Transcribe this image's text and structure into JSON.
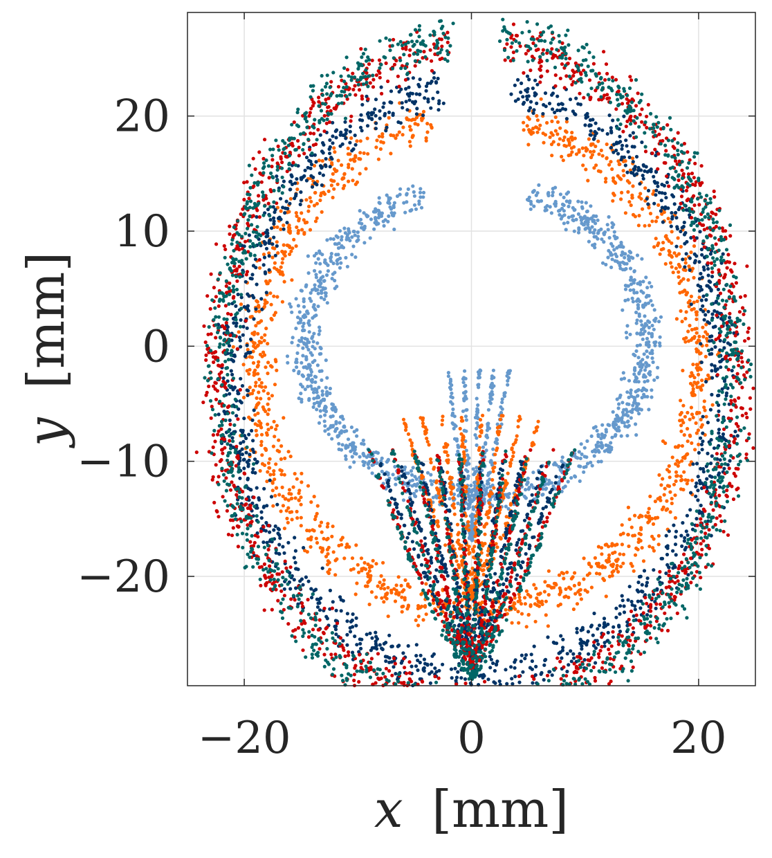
{
  "chart_data": {
    "type": "scatter",
    "title": "",
    "xlabel_var": "x",
    "xlabel_unit": "[mm]",
    "ylabel_var": "y",
    "ylabel_unit": "[mm]",
    "xlim": [
      -25,
      25
    ],
    "ylim": [
      -29.5,
      29
    ],
    "xticks": [
      -20,
      0,
      20
    ],
    "yticks": [
      -20,
      -10,
      0,
      10,
      20
    ],
    "xtick_labels": [
      "−20",
      "0",
      "20"
    ],
    "ytick_labels": [
      "−20",
      "−10",
      "0",
      "10",
      "20"
    ],
    "grid": true,
    "legend": "none",
    "series": [
      {
        "color": "#6699cc",
        "description_ring": {
          "cx": 0.5,
          "cy": 0.5,
          "rx": 15.0,
          "ry": 13.5,
          "band": 2.2
        },
        "ring_gap_top_deg": 18,
        "jets": {
          "count": 5,
          "tip_y": -17,
          "top_y": -2,
          "spread": 4
        }
      },
      {
        "color": "#ff6600",
        "description_ring": {
          "cx": 0.5,
          "cy": -1.5,
          "rx": 19.5,
          "ry": 21.5,
          "band": 2.6
        },
        "ring_gap_top_deg": 12,
        "jets": {
          "count": 8,
          "tip_y": -22,
          "top_y": -6,
          "spread": 7
        }
      },
      {
        "color": "#003366",
        "description_ring": {
          "cx": 0.5,
          "cy": -3.0,
          "rx": 21.5,
          "ry": 25.5,
          "band": 2.8
        },
        "ring_gap_top_deg": 8,
        "jets": {
          "count": 10,
          "tip_y": -27,
          "top_y": -10,
          "spread": 9
        }
      },
      {
        "color": "#cc0000",
        "description_ring": {
          "cx": 0.5,
          "cy": -2.5,
          "rx": 23.0,
          "ry": 28.5,
          "band": 3.0
        },
        "ring_gap_top_deg": 6,
        "jets": {
          "count": 10,
          "tip_y": -28,
          "top_y": -9,
          "spread": 10
        }
      },
      {
        "color": "#006666",
        "description_ring": {
          "cx": 0.5,
          "cy": -2.5,
          "rx": 22.5,
          "ry": 29.5,
          "band": 3.0
        },
        "ring_gap_top_deg": 5,
        "jets": {
          "count": 10,
          "tip_y": -29,
          "top_y": -9,
          "spread": 10
        }
      }
    ]
  }
}
